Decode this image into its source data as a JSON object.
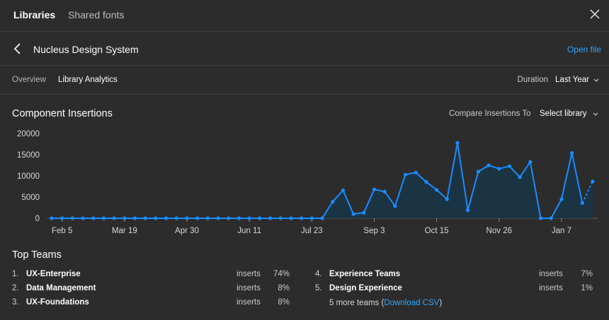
{
  "tabs": {
    "libraries": "Libraries",
    "shared_fonts": "Shared fonts"
  },
  "header": {
    "title": "Nucleus Design System",
    "open_file": "Open file"
  },
  "subnav": {
    "overview": "Overview",
    "analytics": "Library Analytics",
    "duration_label": "Duration",
    "duration_value": "Last Year"
  },
  "insertions": {
    "title": "Component Insertions",
    "compare_label": "Compare Insertions To",
    "compare_value": "Select library"
  },
  "chart_data": {
    "type": "area",
    "title": "",
    "xlabel": "",
    "ylabel": "",
    "ylim": [
      0,
      20000
    ],
    "yticks": [
      0,
      5000,
      10000,
      15000,
      20000
    ],
    "xticks": [
      "Feb 5",
      "Mar 19",
      "Apr 30",
      "Jun 11",
      "Jul 23",
      "Sep 3",
      "Oct 15",
      "Nov 26",
      "Jan 7"
    ],
    "series": [
      {
        "values": [
          0,
          0,
          0,
          0,
          0,
          0,
          0,
          0,
          0,
          0,
          0,
          0,
          0,
          0,
          0,
          0,
          0,
          0,
          0,
          0,
          0,
          0,
          0,
          0,
          0,
          0,
          0,
          3900,
          6600,
          1000,
          1300,
          6800,
          6300,
          2900,
          10300,
          10800,
          8600,
          6700,
          4500,
          17800,
          1900,
          11000,
          12500,
          11700,
          12300,
          9700,
          13300,
          0,
          0,
          4500,
          15400,
          3600,
          8700
        ],
        "projected_from_index": 51
      }
    ],
    "line_color": "#1a8cff",
    "fill_color": "#1b3444",
    "grid": false
  },
  "teams": {
    "title": "Top Teams",
    "inserts_label": "inserts",
    "left": [
      {
        "rank": "1.",
        "name": "UX-Enterprise",
        "pct": "74%"
      },
      {
        "rank": "2.",
        "name": "Data Management",
        "pct": "8%"
      },
      {
        "rank": "3.",
        "name": "UX-Foundations",
        "pct": "8%"
      }
    ],
    "right": [
      {
        "rank": "4.",
        "name": "Experience Teams",
        "pct": "7%"
      },
      {
        "rank": "5.",
        "name": "Design Experience",
        "pct": "1%"
      }
    ],
    "more_text": "5 more teams (",
    "more_link": "Download CSV",
    "more_close": ")"
  },
  "icons": {
    "close": "close-icon",
    "back": "chevron-left-icon",
    "dropdown": "chevron-down-icon"
  }
}
